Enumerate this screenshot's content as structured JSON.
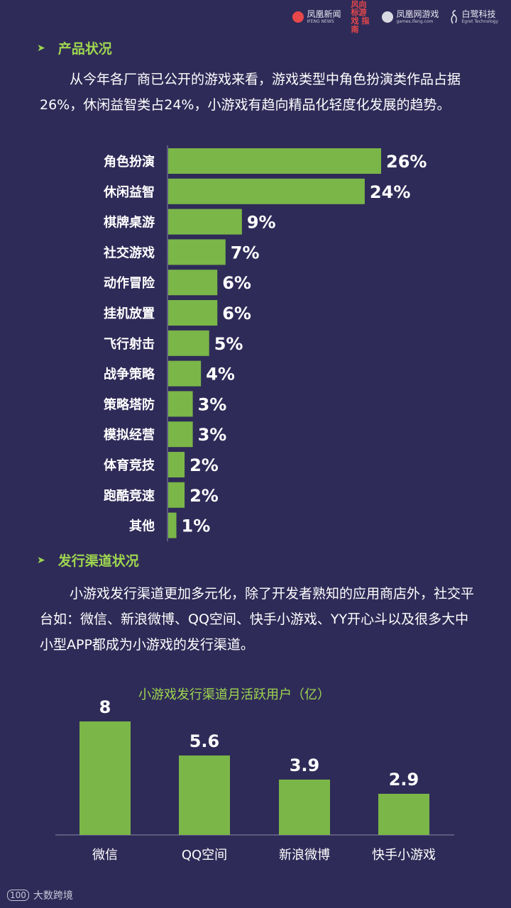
{
  "header": {
    "logos": [
      {
        "name": "凤凰新闻",
        "sub": "IFENG NEWS"
      },
      {
        "name": "风向标游戏 指南"
      },
      {
        "name": "凤凰网游戏",
        "sub": "games.ifeng.com"
      },
      {
        "name": "白鹭科技",
        "sub": "Egret Technology"
      }
    ]
  },
  "section1": {
    "title": "产品状况",
    "paragraph": "从今年各厂商已公开的游戏来看，游戏类型中角色扮演类作品占据26%，休闲益智类占24%，小游戏有趋向精品化轻度化发展的趋势。"
  },
  "section2": {
    "title": "发行渠道状况",
    "paragraph": "小游戏发行渠道更加多元化，除了开发者熟知的应用商店外，社交平台如：微信、新浪微博、QQ空间、快手小游戏、YY开心斗以及很多大中小型APP都成为小游戏的发行渠道。"
  },
  "colors": {
    "background": "#2f2b58",
    "bar": "#7ab648",
    "accent": "#9ed64f"
  },
  "chart_data": [
    {
      "type": "bar",
      "orientation": "horizontal",
      "categories": [
        "角色扮演",
        "休闲益智",
        "棋牌桌游",
        "社交游戏",
        "动作冒险",
        "挂机放置",
        "飞行射击",
        "战争策略",
        "策略塔防",
        "模拟经营",
        "体育竞技",
        "跑酷竞速",
        "其他"
      ],
      "values": [
        26,
        24,
        9,
        7,
        6,
        6,
        5,
        4,
        3,
        3,
        2,
        2,
        1
      ],
      "labels": [
        "26%",
        "24%",
        "9%",
        "7%",
        "6%",
        "6%",
        "5%",
        "4%",
        "3%",
        "3%",
        "2%",
        "2%",
        "1%"
      ]
    },
    {
      "type": "bar",
      "title": "小游戏发行渠道月活跃用户（亿）",
      "categories": [
        "微信",
        "QQ空间",
        "新浪微博",
        "快手小游戏"
      ],
      "values": [
        8,
        5.6,
        3.9,
        2.9
      ],
      "labels": [
        "8",
        "5.6",
        "3.9",
        "2.9"
      ]
    }
  ],
  "watermark": {
    "text": "大数跨境",
    "mark": "100"
  }
}
